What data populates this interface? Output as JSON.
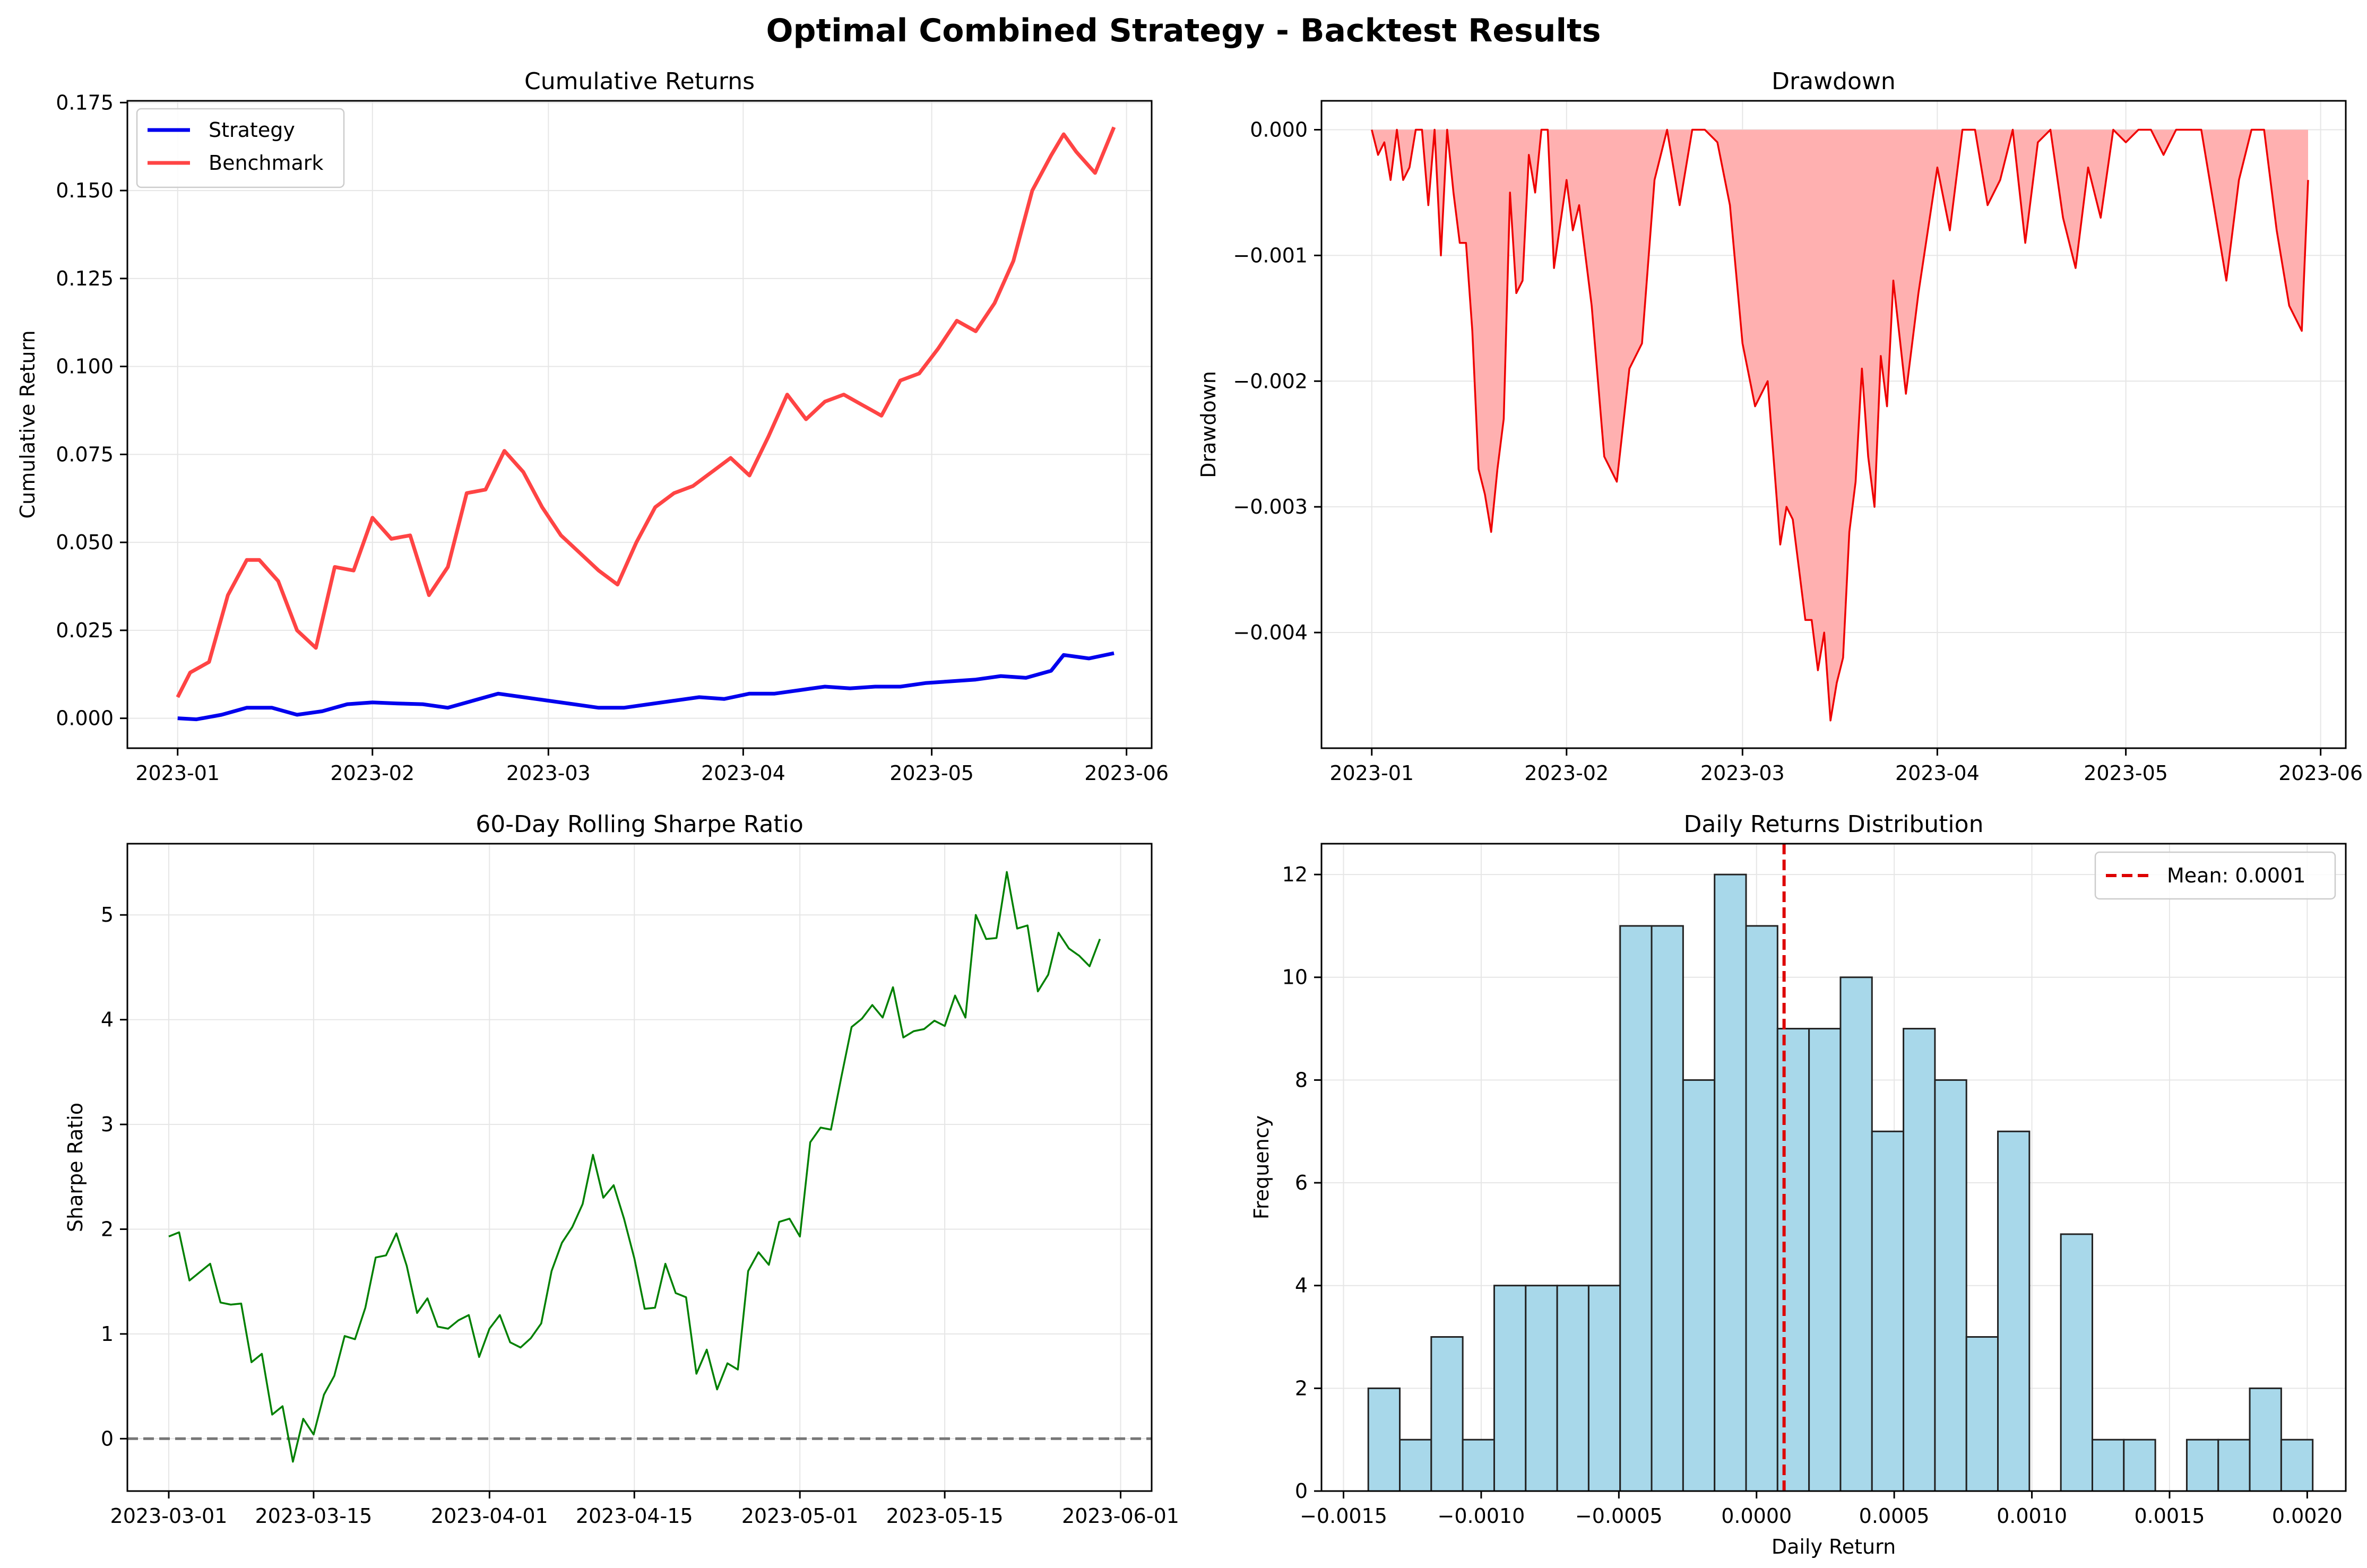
{
  "suptitle": "Optimal Combined Strategy - Backtest Results",
  "colors": {
    "strategy": "#0000ee",
    "benchmark": "#ff4444",
    "drawdown_line": "#ee0000",
    "drawdown_fill": "#ffb0b0",
    "sharpe_line": "#008000",
    "zero_line": "#777777",
    "hist_fill": "#a8d8ea",
    "mean_line": "#dd0000",
    "grid": "#e6e6e6"
  },
  "chart_data": [
    {
      "id": "cumulative",
      "type": "line",
      "title": "Cumulative Returns",
      "xlabel": "",
      "ylabel": "Cumulative Return",
      "xlim": [
        "2022-12-24",
        "2023-06-05"
      ],
      "ylim": [
        -0.0085,
        0.1755
      ],
      "xticks": [
        "2023-01-01",
        "2023-02-01",
        "2023-03-01",
        "2023-04-01",
        "2023-05-01",
        "2023-06-01"
      ],
      "xtick_labels": [
        "2023-01",
        "2023-02",
        "2023-03",
        "2023-04",
        "2023-05",
        "2023-06"
      ],
      "yticks": [
        0.0,
        0.025,
        0.05,
        0.075,
        0.1,
        0.125,
        0.15,
        0.175
      ],
      "ytick_labels": [
        "0.000",
        "0.025",
        "0.050",
        "0.075",
        "0.100",
        "0.125",
        "0.150",
        "0.175"
      ],
      "grid": true,
      "legend": "top-left",
      "series": [
        {
          "name": "Strategy",
          "x": [
            "2023-01-01",
            "2023-01-04",
            "2023-01-08",
            "2023-01-12",
            "2023-01-16",
            "2023-01-20",
            "2023-01-24",
            "2023-01-28",
            "2023-02-01",
            "2023-02-05",
            "2023-02-09",
            "2023-02-13",
            "2023-02-17",
            "2023-02-21",
            "2023-02-25",
            "2023-03-01",
            "2023-03-05",
            "2023-03-09",
            "2023-03-13",
            "2023-03-17",
            "2023-03-21",
            "2023-03-25",
            "2023-03-29",
            "2023-04-02",
            "2023-04-06",
            "2023-04-10",
            "2023-04-14",
            "2023-04-18",
            "2023-04-22",
            "2023-04-26",
            "2023-04-30",
            "2023-05-04",
            "2023-05-08",
            "2023-05-12",
            "2023-05-16",
            "2023-05-20",
            "2023-05-22",
            "2023-05-26",
            "2023-05-30"
          ],
          "y": [
            0.0,
            -0.0003,
            0.001,
            0.003,
            0.003,
            0.001,
            0.002,
            0.004,
            0.0045,
            0.0042,
            0.004,
            0.003,
            0.005,
            0.007,
            0.006,
            0.005,
            0.004,
            0.003,
            0.003,
            0.004,
            0.005,
            0.006,
            0.0055,
            0.007,
            0.007,
            0.008,
            0.009,
            0.0085,
            0.009,
            0.009,
            0.01,
            0.0105,
            0.011,
            0.012,
            0.0115,
            0.0135,
            0.018,
            0.017,
            0.0185
          ]
        },
        {
          "name": "Benchmark",
          "x": [
            "2023-01-01",
            "2023-01-03",
            "2023-01-06",
            "2023-01-09",
            "2023-01-12",
            "2023-01-14",
            "2023-01-17",
            "2023-01-20",
            "2023-01-23",
            "2023-01-26",
            "2023-01-29",
            "2023-02-01",
            "2023-02-04",
            "2023-02-07",
            "2023-02-10",
            "2023-02-13",
            "2023-02-16",
            "2023-02-19",
            "2023-02-22",
            "2023-02-25",
            "2023-02-28",
            "2023-03-03",
            "2023-03-06",
            "2023-03-09",
            "2023-03-12",
            "2023-03-15",
            "2023-03-18",
            "2023-03-21",
            "2023-03-24",
            "2023-03-27",
            "2023-03-30",
            "2023-04-02",
            "2023-04-05",
            "2023-04-08",
            "2023-04-11",
            "2023-04-14",
            "2023-04-17",
            "2023-04-20",
            "2023-04-23",
            "2023-04-26",
            "2023-04-29",
            "2023-05-02",
            "2023-05-05",
            "2023-05-08",
            "2023-05-11",
            "2023-05-14",
            "2023-05-17",
            "2023-05-20",
            "2023-05-22",
            "2023-05-24",
            "2023-05-27",
            "2023-05-30"
          ],
          "y": [
            0.006,
            0.013,
            0.016,
            0.035,
            0.045,
            0.045,
            0.039,
            0.025,
            0.02,
            0.043,
            0.042,
            0.057,
            0.051,
            0.052,
            0.035,
            0.043,
            0.064,
            0.065,
            0.076,
            0.07,
            0.06,
            0.052,
            0.047,
            0.042,
            0.038,
            0.05,
            0.06,
            0.064,
            0.066,
            0.07,
            0.074,
            0.069,
            0.08,
            0.092,
            0.085,
            0.09,
            0.092,
            0.089,
            0.086,
            0.096,
            0.098,
            0.105,
            0.113,
            0.11,
            0.118,
            0.13,
            0.15,
            0.16,
            0.166,
            0.161,
            0.155,
            0.168
          ]
        }
      ]
    },
    {
      "id": "drawdown",
      "type": "area",
      "title": "Drawdown",
      "xlabel": "",
      "ylabel": "Drawdown",
      "xlim": [
        "2022-12-24",
        "2023-06-05"
      ],
      "ylim": [
        -0.00492,
        0.00023
      ],
      "xticks": [
        "2023-01-01",
        "2023-02-01",
        "2023-03-01",
        "2023-04-01",
        "2023-05-01",
        "2023-06-01"
      ],
      "xtick_labels": [
        "2023-01",
        "2023-02",
        "2023-03",
        "2023-04",
        "2023-05",
        "2023-06"
      ],
      "yticks": [
        0.0,
        -0.001,
        -0.002,
        -0.003,
        -0.004
      ],
      "ytick_labels": [
        "0.000",
        "−0.001",
        "−0.002",
        "−0.003",
        "−0.004"
      ],
      "grid": true,
      "series": [
        {
          "name": "",
          "x": [
            "2023-01-01",
            "2023-01-02",
            "2023-01-03",
            "2023-01-04",
            "2023-01-05",
            "2023-01-06",
            "2023-01-07",
            "2023-01-08",
            "2023-01-09",
            "2023-01-10",
            "2023-01-11",
            "2023-01-12",
            "2023-01-13",
            "2023-01-14",
            "2023-01-15",
            "2023-01-16",
            "2023-01-17",
            "2023-01-18",
            "2023-01-19",
            "2023-01-20",
            "2023-01-21",
            "2023-01-22",
            "2023-01-23",
            "2023-01-24",
            "2023-01-25",
            "2023-01-26",
            "2023-01-27",
            "2023-01-28",
            "2023-01-29",
            "2023-01-30",
            "2023-02-01",
            "2023-02-02",
            "2023-02-03",
            "2023-02-05",
            "2023-02-07",
            "2023-02-09",
            "2023-02-11",
            "2023-02-13",
            "2023-02-15",
            "2023-02-17",
            "2023-02-19",
            "2023-02-21",
            "2023-02-23",
            "2023-02-25",
            "2023-02-27",
            "2023-03-01",
            "2023-03-03",
            "2023-03-05",
            "2023-03-07",
            "2023-03-08",
            "2023-03-09",
            "2023-03-10",
            "2023-03-11",
            "2023-03-12",
            "2023-03-13",
            "2023-03-14",
            "2023-03-15",
            "2023-03-16",
            "2023-03-17",
            "2023-03-18",
            "2023-03-19",
            "2023-03-20",
            "2023-03-21",
            "2023-03-22",
            "2023-03-23",
            "2023-03-24",
            "2023-03-25",
            "2023-03-27",
            "2023-03-29",
            "2023-04-01",
            "2023-04-03",
            "2023-04-05",
            "2023-04-07",
            "2023-04-09",
            "2023-04-11",
            "2023-04-13",
            "2023-04-15",
            "2023-04-17",
            "2023-04-19",
            "2023-04-21",
            "2023-04-23",
            "2023-04-25",
            "2023-04-27",
            "2023-04-29",
            "2023-05-01",
            "2023-05-03",
            "2023-05-05",
            "2023-05-07",
            "2023-05-09",
            "2023-05-11",
            "2023-05-13",
            "2023-05-15",
            "2023-05-17",
            "2023-05-19",
            "2023-05-21",
            "2023-05-23",
            "2023-05-25",
            "2023-05-27",
            "2023-05-29",
            "2023-05-30"
          ],
          "y": [
            0.0,
            -0.0002,
            -0.0001,
            -0.0004,
            0.0,
            -0.0004,
            -0.0003,
            0.0,
            0.0,
            -0.0006,
            0.0,
            -0.001,
            0.0,
            -0.0005,
            -0.0009,
            -0.0009,
            -0.0016,
            -0.0027,
            -0.0029,
            -0.0032,
            -0.0027,
            -0.0023,
            -0.0005,
            -0.0013,
            -0.0012,
            -0.0002,
            -0.0005,
            0.0,
            0.0,
            -0.0011,
            -0.0004,
            -0.0008,
            -0.0006,
            -0.0014,
            -0.0026,
            -0.0028,
            -0.0019,
            -0.0017,
            -0.0004,
            0.0,
            -0.0006,
            0.0,
            0.0,
            -0.0001,
            -0.0006,
            -0.0017,
            -0.0022,
            -0.002,
            -0.0033,
            -0.003,
            -0.0031,
            -0.0035,
            -0.0039,
            -0.0039,
            -0.0043,
            -0.004,
            -0.0047,
            -0.0044,
            -0.0042,
            -0.0032,
            -0.0028,
            -0.0019,
            -0.0026,
            -0.003,
            -0.0018,
            -0.0022,
            -0.0012,
            -0.0021,
            -0.0013,
            -0.0003,
            -0.0008,
            0.0,
            0.0,
            -0.0006,
            -0.0004,
            0.0,
            -0.0009,
            -0.0001,
            0.0,
            -0.0007,
            -0.0011,
            -0.0003,
            -0.0007,
            0.0,
            -0.0001,
            0.0,
            0.0,
            -0.0002,
            0.0,
            0.0,
            0.0,
            -0.0006,
            -0.0012,
            -0.0004,
            0.0,
            0.0,
            -0.0008,
            -0.0014,
            -0.0016,
            -0.0004
          ]
        }
      ]
    },
    {
      "id": "rolling-sharpe",
      "type": "line",
      "title": "60-Day Rolling Sharpe Ratio",
      "xlabel": "",
      "ylabel": "Sharpe Ratio",
      "xlim": [
        "2023-02-25",
        "2023-06-04"
      ],
      "ylim": [
        -0.5,
        5.68
      ],
      "xticks": [
        "2023-03-01",
        "2023-03-15",
        "2023-04-01",
        "2023-04-15",
        "2023-05-01",
        "2023-05-15",
        "2023-06-01"
      ],
      "xtick_labels": [
        "2023-03-01",
        "2023-03-15",
        "2023-04-01",
        "2023-04-15",
        "2023-05-01",
        "2023-05-15",
        "2023-06-01"
      ],
      "yticks": [
        0,
        1,
        2,
        3,
        4,
        5
      ],
      "ytick_labels": [
        "0",
        "1",
        "2",
        "3",
        "4",
        "5"
      ],
      "grid": true,
      "reference_line": 0,
      "series": [
        {
          "name": "",
          "x": [
            "2023-03-01",
            "2023-03-02",
            "2023-03-03",
            "2023-03-04",
            "2023-03-05",
            "2023-03-06",
            "2023-03-07",
            "2023-03-08",
            "2023-03-09",
            "2023-03-10",
            "2023-03-11",
            "2023-03-12",
            "2023-03-13",
            "2023-03-14",
            "2023-03-15",
            "2023-03-16",
            "2023-03-17",
            "2023-03-18",
            "2023-03-19",
            "2023-03-20",
            "2023-03-21",
            "2023-03-22",
            "2023-03-23",
            "2023-03-24",
            "2023-03-25",
            "2023-03-26",
            "2023-03-27",
            "2023-03-28",
            "2023-03-29",
            "2023-03-30",
            "2023-03-31",
            "2023-04-01",
            "2023-04-02",
            "2023-04-03",
            "2023-04-04",
            "2023-04-05",
            "2023-04-06",
            "2023-04-07",
            "2023-04-08",
            "2023-04-09",
            "2023-04-10",
            "2023-04-11",
            "2023-04-12",
            "2023-04-13",
            "2023-04-14",
            "2023-04-15",
            "2023-04-16",
            "2023-04-17",
            "2023-04-18",
            "2023-04-19",
            "2023-04-20",
            "2023-04-21",
            "2023-04-22",
            "2023-04-23",
            "2023-04-24",
            "2023-04-25",
            "2023-04-26",
            "2023-04-27",
            "2023-04-28",
            "2023-04-29",
            "2023-04-30",
            "2023-05-01",
            "2023-05-02",
            "2023-05-03",
            "2023-05-04",
            "2023-05-05",
            "2023-05-06",
            "2023-05-07",
            "2023-05-08",
            "2023-05-09",
            "2023-05-10",
            "2023-05-11",
            "2023-05-12",
            "2023-05-13",
            "2023-05-14",
            "2023-05-15",
            "2023-05-16",
            "2023-05-17",
            "2023-05-18",
            "2023-05-19",
            "2023-05-20",
            "2023-05-21",
            "2023-05-22",
            "2023-05-23",
            "2023-05-24",
            "2023-05-25",
            "2023-05-26",
            "2023-05-27",
            "2023-05-28",
            "2023-05-29",
            "2023-05-30"
          ],
          "y": [
            1.93,
            1.97,
            1.51,
            1.59,
            1.67,
            1.3,
            1.28,
            1.29,
            0.73,
            0.81,
            0.23,
            0.31,
            -0.22,
            0.19,
            0.04,
            0.42,
            0.6,
            0.98,
            0.95,
            1.25,
            1.73,
            1.75,
            1.96,
            1.65,
            1.2,
            1.34,
            1.07,
            1.05,
            1.13,
            1.18,
            0.78,
            1.05,
            1.18,
            0.92,
            0.87,
            0.96,
            1.1,
            1.6,
            1.87,
            2.02,
            2.24,
            2.71,
            2.3,
            2.42,
            2.1,
            1.72,
            1.24,
            1.25,
            1.67,
            1.39,
            1.35,
            0.62,
            0.85,
            0.47,
            0.72,
            0.66,
            1.6,
            1.78,
            1.66,
            2.07,
            2.1,
            1.93,
            2.83,
            2.97,
            2.95,
            3.45,
            3.93,
            4.01,
            4.14,
            4.02,
            4.31,
            3.83,
            3.89,
            3.91,
            3.99,
            3.94,
            4.23,
            4.02,
            5.0,
            4.77,
            4.78,
            5.41,
            4.87,
            4.9,
            4.27,
            4.43,
            4.83,
            4.68,
            4.61,
            4.51,
            4.77
          ]
        }
      ]
    },
    {
      "id": "returns-distribution",
      "type": "bar",
      "title": "Daily Returns Distribution",
      "xlabel": "Daily Return",
      "ylabel": "Frequency",
      "xlim": [
        -0.00158,
        0.00214
      ],
      "ylim": [
        0,
        12.6
      ],
      "xticks": [
        -0.0015,
        -0.001,
        -0.0005,
        0.0,
        0.0005,
        0.001,
        0.0015,
        0.002
      ],
      "xtick_labels": [
        "−0.0015",
        "−0.0010",
        "−0.0005",
        "0.0000",
        "0.0005",
        "0.0010",
        "0.0015",
        "0.0020"
      ],
      "yticks": [
        0,
        2,
        4,
        6,
        8,
        10,
        12
      ],
      "ytick_labels": [
        "0",
        "2",
        "4",
        "6",
        "8",
        "10",
        "12"
      ],
      "grid": true,
      "legend": "top-right",
      "bin_start": -0.00141,
      "bin_width": 0.00011433,
      "counts": [
        2,
        1,
        3,
        1,
        4,
        4,
        4,
        4,
        11,
        11,
        8,
        12,
        11,
        9,
        9,
        10,
        7,
        9,
        8,
        3,
        7,
        0,
        5,
        1,
        1,
        0,
        1,
        1,
        2,
        1
      ],
      "mean": 0.0001,
      "mean_label": "Mean: 0.0001"
    }
  ]
}
